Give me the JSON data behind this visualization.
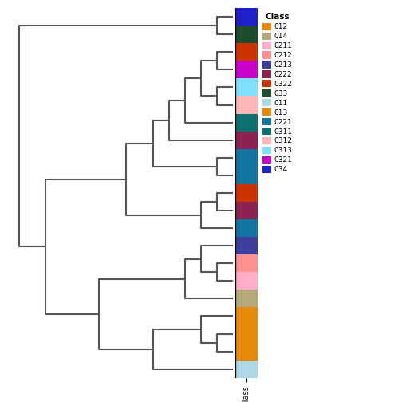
{
  "figsize": [
    5.04,
    5.04
  ],
  "dpi": 100,
  "classes": [
    {
      "name": "012",
      "color": "#E8890A"
    },
    {
      "name": "014",
      "color": "#B5A87A"
    },
    {
      "name": "0211",
      "color": "#FFAEC9"
    },
    {
      "name": "0212",
      "color": "#FF9090"
    },
    {
      "name": "0213",
      "color": "#3D3D9C"
    },
    {
      "name": "0222",
      "color": "#8B2252"
    },
    {
      "name": "0322",
      "color": "#CC3300"
    },
    {
      "name": "033",
      "color": "#1E4D2B"
    },
    {
      "name": "011",
      "color": "#ADD8E6"
    },
    {
      "name": "013",
      "color": "#E8890A"
    },
    {
      "name": "0221",
      "color": "#1075A0"
    },
    {
      "name": "0311",
      "color": "#0E7070"
    },
    {
      "name": "0312",
      "color": "#FFB6B6"
    },
    {
      "name": "0313",
      "color": "#7FE0FF"
    },
    {
      "name": "0321",
      "color": "#CC00CC"
    },
    {
      "name": "034",
      "color": "#2020CC"
    }
  ],
  "leaf_colors_top_to_bottom": [
    "#ADD8E6",
    "#E8890A",
    "#E8890A",
    "#E8890A",
    "#B5A87A",
    "#FFAEC9",
    "#FF9090",
    "#3D3D9C",
    "#1075A0",
    "#8B2252",
    "#CC3300",
    "#1075A0",
    "#1075A0",
    "#8B2252",
    "#0E7070",
    "#FFB6B6",
    "#7FE0FF",
    "#CC00CC",
    "#CC3300",
    "#1E4D2B",
    "#2020CC"
  ]
}
